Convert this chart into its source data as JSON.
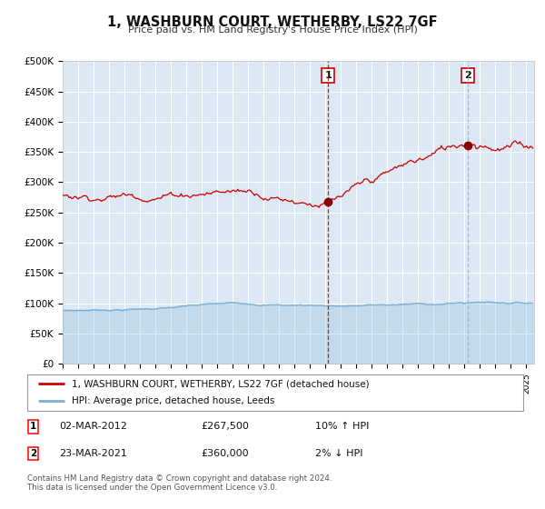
{
  "title": "1, WASHBURN COURT, WETHERBY, LS22 7GF",
  "subtitle": "Price paid vs. HM Land Registry's House Price Index (HPI)",
  "ylim": [
    0,
    500000
  ],
  "yticks": [
    0,
    50000,
    100000,
    150000,
    200000,
    250000,
    300000,
    350000,
    400000,
    450000,
    500000
  ],
  "ytick_labels": [
    "£0",
    "£50K",
    "£100K",
    "£150K",
    "£200K",
    "£250K",
    "£300K",
    "£350K",
    "£400K",
    "£450K",
    "£500K"
  ],
  "hpi_color": "#7bafd4",
  "price_color": "#cc0000",
  "marker_color": "#8B0000",
  "bg_color": "#dce9f5",
  "grid_color": "#ffffff",
  "vline1_color": "#cc0000",
  "vline2_color": "#aaaaaa",
  "sale1_year": 2012.17,
  "sale1_price": 267500,
  "sale2_year": 2021.23,
  "sale2_price": 360000,
  "sale1_date": "02-MAR-2012",
  "sale1_hpi_pct": "10% ↑ HPI",
  "sale2_date": "23-MAR-2021",
  "sale2_hpi_pct": "2% ↓ HPI",
  "legend_line1": "1, WASHBURN COURT, WETHERBY, LS22 7GF (detached house)",
  "legend_line2": "HPI: Average price, detached house, Leeds",
  "footer": "Contains HM Land Registry data © Crown copyright and database right 2024.\nThis data is licensed under the Open Government Licence v3.0."
}
